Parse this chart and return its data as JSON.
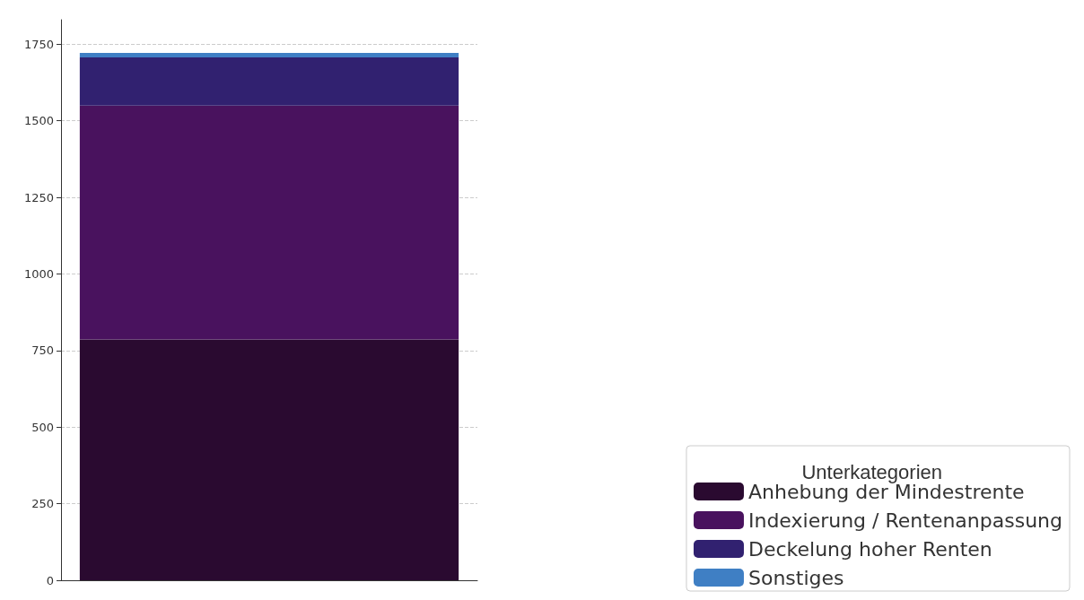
{
  "chart_data": {
    "type": "bar",
    "stacked": true,
    "categories": [
      null
    ],
    "series": [
      {
        "name": "Anhebung der Mindestrente",
        "color": "#2a0a30",
        "values": [
          786
        ]
      },
      {
        "name": "Indexierung / Rentenanpassung",
        "color": "#49125e",
        "values": [
          764
        ]
      },
      {
        "name": "Deckelung hoher Renten",
        "color": "#312170",
        "values": [
          157
        ]
      },
      {
        "name": "Sonstiges",
        "color": "#3f7fc4",
        "values": [
          15
        ]
      }
    ],
    "legend_title": "Unterkategorien",
    "legend": "bottom right",
    "ylim": [
      0,
      1830
    ],
    "yticks": [
      0,
      250,
      500,
      750,
      1000,
      1250,
      1500,
      1750
    ],
    "grid": "y"
  }
}
